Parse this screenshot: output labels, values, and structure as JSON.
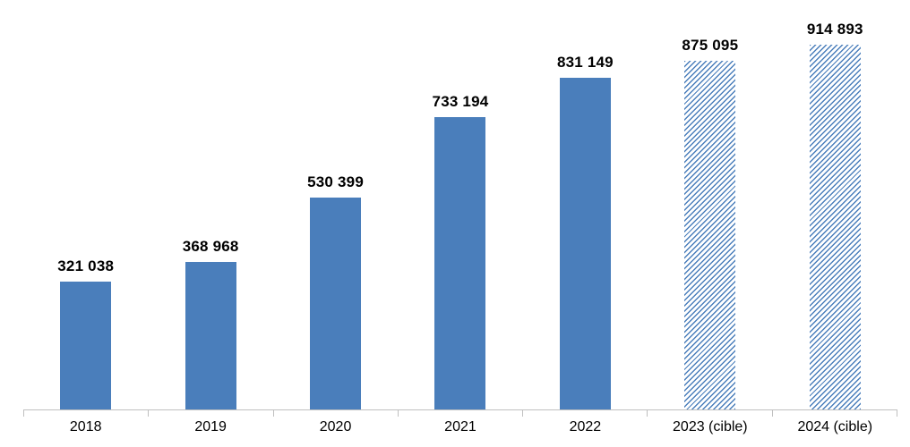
{
  "chart_data": {
    "type": "bar",
    "title": "",
    "xlabel": "",
    "ylabel": "",
    "categories": [
      "2018",
      "2019",
      "2020",
      "2021",
      "2022",
      "2023 (cible)",
      "2024 (cible)"
    ],
    "values": [
      321038,
      368968,
      530399,
      733194,
      831149,
      875095,
      914893
    ],
    "value_labels": [
      "321 038",
      "368 968",
      "530 399",
      "733 194",
      "831 149",
      "875 095",
      "914 893"
    ],
    "target_indices": [
      5,
      6
    ],
    "ylim": [
      0,
      914893
    ],
    "grid": "off",
    "legend": "none",
    "colors": {
      "bar_color": "#4a7ebb",
      "target_hatch_background": "#ffffff",
      "axis_color": "#bfbfbf",
      "label_color": "#000000"
    }
  }
}
